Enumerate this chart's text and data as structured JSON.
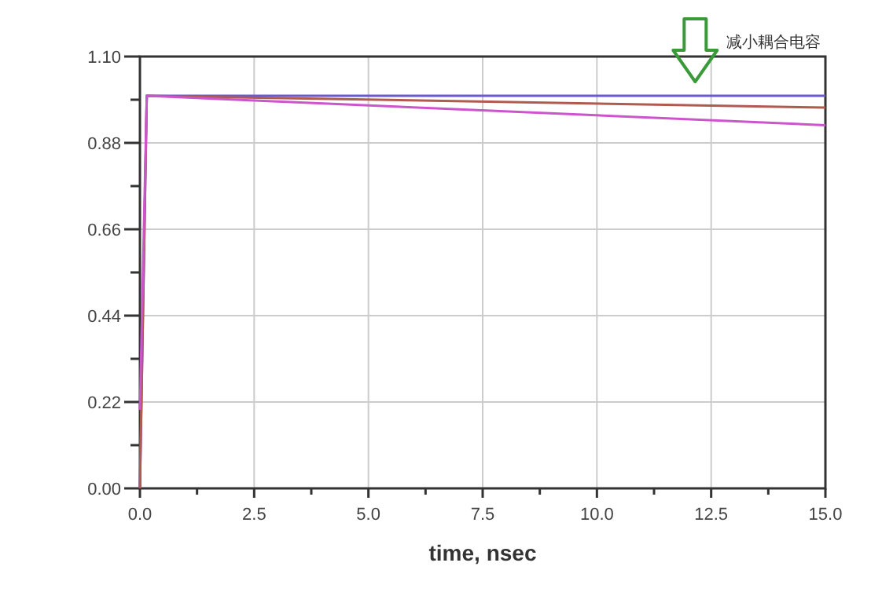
{
  "chart_data": {
    "type": "line",
    "xlabel": "time, nsec",
    "xlim": [
      0,
      15
    ],
    "ylim": [
      0,
      1.1
    ],
    "xticks": [
      {
        "value": 0,
        "label": "0.0"
      },
      {
        "value": 1.25,
        "label": null
      },
      {
        "value": 2.5,
        "label": "2.5"
      },
      {
        "value": 3.75,
        "label": null
      },
      {
        "value": 5,
        "label": "5.0"
      },
      {
        "value": 6.25,
        "label": null
      },
      {
        "value": 7.5,
        "label": "7.5"
      },
      {
        "value": 8.75,
        "label": null
      },
      {
        "value": 10,
        "label": "10.0"
      },
      {
        "value": 11.25,
        "label": null
      },
      {
        "value": 12.5,
        "label": "12.5"
      },
      {
        "value": 13.75,
        "label": null
      },
      {
        "value": 15,
        "label": "15.0"
      }
    ],
    "yticks": [
      {
        "value": 0,
        "label": "0.00"
      },
      {
        "value": 0.11,
        "label": null
      },
      {
        "value": 0.22,
        "label": "0.22"
      },
      {
        "value": 0.33,
        "label": null
      },
      {
        "value": 0.44,
        "label": "0.44"
      },
      {
        "value": 0.55,
        "label": null
      },
      {
        "value": 0.66,
        "label": "0.66"
      },
      {
        "value": 0.77,
        "label": null
      },
      {
        "value": 0.88,
        "label": "0.88"
      },
      {
        "value": 0.99,
        "label": null
      },
      {
        "value": 1.1,
        "label": "1.10"
      }
    ],
    "grid": true,
    "series": [
      {
        "color": "#6a5acd",
        "x": [
          0,
          0.15,
          15
        ],
        "values": [
          0,
          1.0,
          1.0
        ]
      },
      {
        "color": "#b05a50",
        "x": [
          0,
          0.15,
          15
        ],
        "values": [
          0,
          1.0,
          0.97
        ]
      },
      {
        "color": "#cc55cc",
        "x": [
          0,
          0.15,
          15
        ],
        "values": [
          0.2,
          1.0,
          0.925
        ]
      }
    ],
    "annotations": [
      "减小耦合电容"
    ]
  }
}
